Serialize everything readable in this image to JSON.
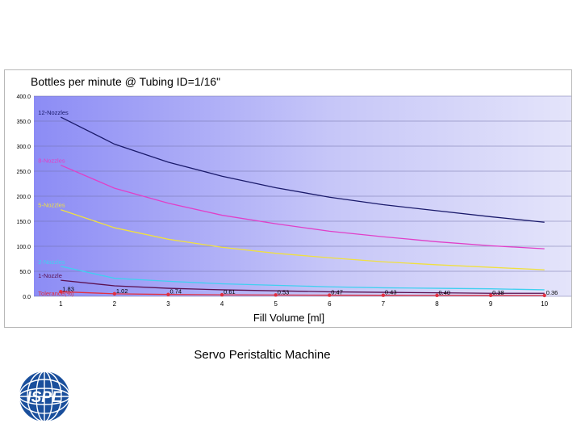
{
  "chart_data": {
    "type": "line",
    "title": "Bottles per minute @ Tubing ID=1/16\"",
    "xlabel": "Fill Volume [ml]",
    "ylabel": "",
    "ylim": [
      0,
      400
    ],
    "yticks": [
      "0.0",
      "50.0",
      "100.0",
      "150.0",
      "200.0",
      "250.0",
      "300.0",
      "350.0",
      "400.0"
    ],
    "x": [
      1,
      2,
      3,
      4,
      5,
      6,
      7,
      8,
      9,
      10
    ],
    "xticks": [
      "1",
      "2",
      "3",
      "4",
      "5",
      "6",
      "7",
      "8",
      "9",
      "10"
    ],
    "grid": true,
    "legend": "inline labels at line starts",
    "series": [
      {
        "name": "12-Nozzles",
        "color": "#1a1a6b",
        "values": [
          358,
          304,
          268,
          240,
          217,
          198,
          183,
          171,
          159,
          148
        ]
      },
      {
        "name": "8-Nozzles",
        "color": "#e040c8",
        "values": [
          262,
          216,
          186,
          162,
          145,
          130,
          119,
          109,
          101,
          95
        ]
      },
      {
        "name": "5-Nozzles",
        "color": "#f0e040",
        "values": [
          173,
          137,
          114,
          98,
          86,
          77,
          69,
          63,
          58,
          53
        ]
      },
      {
        "name": "2-Nozzles",
        "color": "#40d0f0",
        "values": [
          60,
          36,
          30,
          25,
          22,
          19,
          17,
          16,
          15,
          13
        ]
      },
      {
        "name": "1-Nozzle",
        "color": "#5a1050",
        "values": [
          32,
          21,
          16,
          13,
          11,
          9,
          8,
          7,
          6,
          6
        ]
      },
      {
        "name": "Tolerance(%)",
        "color": "#e03040",
        "values": [
          1.83,
          1.02,
          0.74,
          0.61,
          0.53,
          0.47,
          0.43,
          0.4,
          0.38,
          0.36
        ],
        "labels": [
          "1.83",
          "1.02",
          "0.74",
          "0.61",
          "0.53",
          "0.47",
          "0.43",
          "0.40",
          "0.38",
          "0.36"
        ]
      }
    ]
  },
  "caption": "Servo Peristaltic Machine",
  "logo": {
    "text": "ISPE",
    "colors": {
      "globe": "#1a4f9c",
      "text": "#ffffff"
    }
  }
}
